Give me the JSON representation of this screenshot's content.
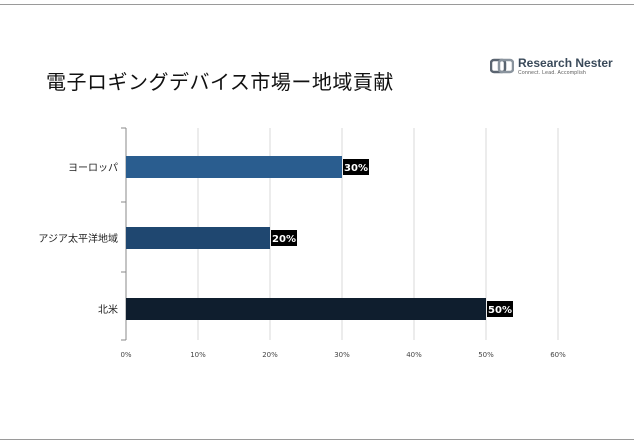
{
  "title": "電子ロギングデバイス市場ー地域貢献",
  "logo": {
    "name": "Research Nester",
    "tagline": "Connect. Lead. Accomplish",
    "icon": "research-nester-logo"
  },
  "chart_data": {
    "type": "bar",
    "orientation": "horizontal",
    "categories": [
      "ヨーロッパ",
      "アジア太平洋地域",
      "北米"
    ],
    "values": [
      30,
      20,
      50
    ],
    "data_labels": [
      "30%",
      "20%",
      "50%"
    ],
    "colors": [
      "#2a5d8f",
      "#1f4770",
      "#0f1e2e"
    ],
    "xlim": [
      0,
      60
    ],
    "xticks": [
      "0%",
      "10%",
      "20%",
      "30%",
      "40%",
      "50%",
      "60%"
    ],
    "grid": true,
    "legend": "none"
  }
}
